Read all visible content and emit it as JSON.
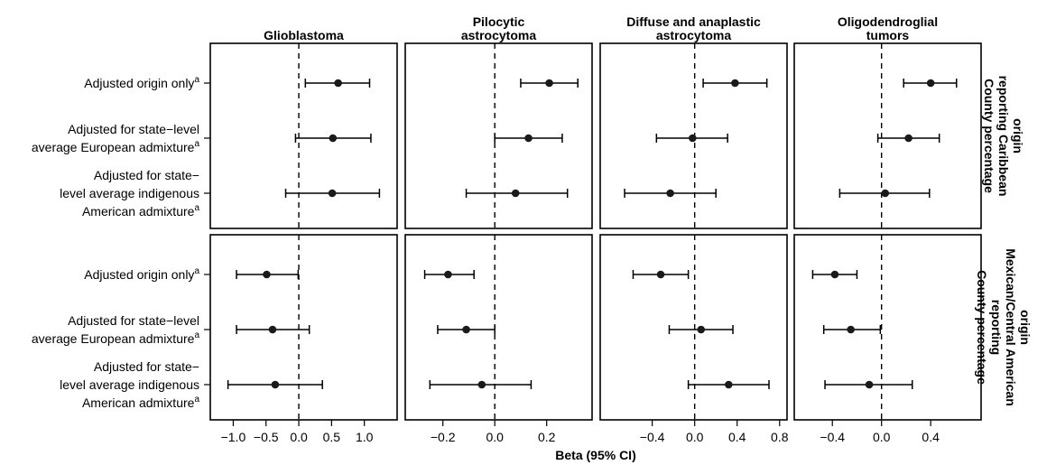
{
  "chart_data": {
    "type": "forest",
    "xlabel": "Beta (95% CI)",
    "columns": [
      {
        "title": [
          "Glioblastoma"
        ],
        "xlim": [
          -1.35,
          1.5
        ],
        "ticks": [
          -1.0,
          -0.5,
          0.0,
          0.5,
          1.0
        ],
        "tick_labels": [
          "−1.0",
          "−0.5",
          "0.0",
          "0.5",
          "1.0"
        ]
      },
      {
        "title": [
          "Pilocytic",
          "astrocytoma"
        ],
        "xlim": [
          -0.345,
          0.375
        ],
        "ticks": [
          -0.2,
          0.0,
          0.2
        ],
        "tick_labels": [
          "−0.2",
          "0.0",
          "0.2"
        ]
      },
      {
        "title": [
          "Diffuse and anaplastic",
          "astrocytoma"
        ],
        "xlim": [
          -0.89,
          0.87
        ],
        "ticks": [
          -0.4,
          0.0,
          0.4,
          0.8
        ],
        "tick_labels": [
          "−0.4",
          "0.0",
          "0.4",
          "0.8"
        ]
      },
      {
        "title": [
          "Oligodendroglial",
          "tumors"
        ],
        "xlim": [
          -0.71,
          0.81
        ],
        "ticks": [
          -0.4,
          0.0,
          0.4
        ],
        "tick_labels": [
          "−0.4",
          "0.0",
          "0.4"
        ]
      }
    ],
    "rows": [
      {
        "title": [
          "County percentage",
          "reporting Caribbean",
          "origin"
        ]
      },
      {
        "title": [
          "County percentage",
          "reporting",
          "Mexican/Central American",
          "origin"
        ]
      }
    ],
    "estimates": [
      {
        "label": [
          "Adjusted origin only"
        ],
        "superscript": "a"
      },
      {
        "label": [
          "Adjusted for state−level",
          "average European admixture"
        ],
        "superscript": "a"
      },
      {
        "label": [
          "Adjusted for state−",
          "level average indigenous",
          "American admixture"
        ],
        "superscript": "a"
      }
    ],
    "panels": [
      [
        [
          {
            "est": 0.6,
            "lo": 0.1,
            "hi": 1.08
          },
          {
            "est": 0.52,
            "lo": -0.05,
            "hi": 1.1
          },
          {
            "est": 0.51,
            "lo": -0.2,
            "hi": 1.23
          }
        ],
        [
          {
            "est": 0.21,
            "lo": 0.1,
            "hi": 0.32
          },
          {
            "est": 0.13,
            "lo": 0.0,
            "hi": 0.26
          },
          {
            "est": 0.08,
            "lo": -0.11,
            "hi": 0.28
          }
        ],
        [
          {
            "est": 0.38,
            "lo": 0.08,
            "hi": 0.68
          },
          {
            "est": -0.02,
            "lo": -0.36,
            "hi": 0.31
          },
          {
            "est": -0.23,
            "lo": -0.66,
            "hi": 0.2
          }
        ],
        [
          {
            "est": 0.4,
            "lo": 0.18,
            "hi": 0.61
          },
          {
            "est": 0.22,
            "lo": -0.03,
            "hi": 0.47
          },
          {
            "est": 0.03,
            "lo": -0.34,
            "hi": 0.39
          }
        ]
      ],
      [
        [
          {
            "est": -0.49,
            "lo": -0.95,
            "hi": -0.01
          },
          {
            "est": -0.4,
            "lo": -0.95,
            "hi": 0.16
          },
          {
            "est": -0.36,
            "lo": -1.08,
            "hi": 0.36
          }
        ],
        [
          {
            "est": -0.18,
            "lo": -0.27,
            "hi": -0.08
          },
          {
            "est": -0.11,
            "lo": -0.22,
            "hi": 0.0
          },
          {
            "est": -0.05,
            "lo": -0.25,
            "hi": 0.14
          }
        ],
        [
          {
            "est": -0.32,
            "lo": -0.58,
            "hi": -0.06
          },
          {
            "est": 0.06,
            "lo": -0.24,
            "hi": 0.36
          },
          {
            "est": 0.32,
            "lo": -0.06,
            "hi": 0.7
          }
        ],
        [
          {
            "est": -0.38,
            "lo": -0.56,
            "hi": -0.2
          },
          {
            "est": -0.25,
            "lo": -0.47,
            "hi": -0.01
          },
          {
            "est": -0.1,
            "lo": -0.46,
            "hi": 0.25
          }
        ]
      ]
    ],
    "reference_line": 0,
    "grid": false,
    "legend": "none"
  }
}
